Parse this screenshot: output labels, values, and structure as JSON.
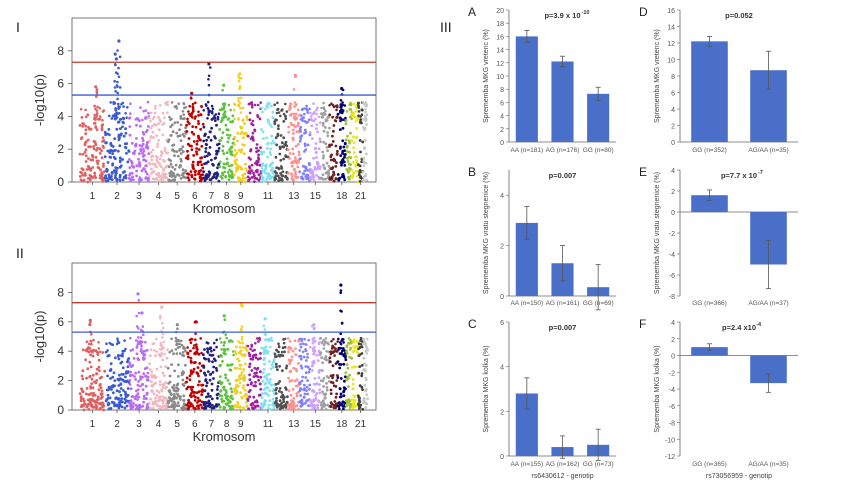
{
  "panel_labels": {
    "I": "I",
    "II": "II",
    "III": "III"
  },
  "colors": {
    "threshold_genome": "#c0392b",
    "threshold_suggestive": "#3b5bdb",
    "bar": "#4a6fc8",
    "chromosomes": [
      "#e06060",
      "#3c5bd0",
      "#b96cf0",
      "#f0b8c0",
      "#8a8a8a",
      "#c00000",
      "#202080",
      "#60c040",
      "#f0d020",
      "#a020a0",
      "#80e0f0",
      "#505050",
      "#ff9090",
      "#8080ff",
      "#d0a0ff",
      "#a0a0a0",
      "#702020",
      "#000070",
      "#a0c030",
      "#e8e820",
      "#404040",
      "#c8c8c8"
    ]
  },
  "chart_data": [
    {
      "id": "I",
      "type": "scatter",
      "subtype": "manhattan",
      "ylabel": "-log10(p)",
      "xlabel": "Kromosom",
      "ylim": [
        0,
        10
      ],
      "yticks": [
        "0",
        "2",
        "4",
        "6",
        "8"
      ],
      "xtick_labels": [
        "1",
        "2",
        "3",
        "4",
        "5",
        "6",
        "7",
        "8",
        "9",
        "11",
        "13",
        "15",
        "18",
        "21"
      ],
      "thresholds": [
        7.3,
        5.3
      ],
      "peaks": [
        {
          "chrom": 1,
          "value": 5.8
        },
        {
          "chrom": 2,
          "value": 8.6
        },
        {
          "chrom": 2,
          "value": 7.8
        },
        {
          "chrom": 2,
          "value": 7.5
        },
        {
          "chrom": 6,
          "value": 5.4
        },
        {
          "chrom": 7,
          "value": 7.2
        },
        {
          "chrom": 8,
          "value": 5.9
        },
        {
          "chrom": 9,
          "value": 6.6
        },
        {
          "chrom": 13,
          "value": 6.5
        },
        {
          "chrom": 18,
          "value": 5.7
        }
      ]
    },
    {
      "id": "II",
      "type": "scatter",
      "subtype": "manhattan",
      "ylabel": "-log10(p)",
      "xlabel": "Kromosom",
      "ylim": [
        0,
        10
      ],
      "yticks": [
        "0",
        "2",
        "4",
        "6",
        "8"
      ],
      "xtick_labels": [
        "1",
        "2",
        "3",
        "4",
        "5",
        "6",
        "7",
        "8",
        "9",
        "11",
        "13",
        "15",
        "18",
        "21"
      ],
      "thresholds": [
        7.3,
        5.3
      ],
      "peaks": [
        {
          "chrom": 1,
          "value": 6.1
        },
        {
          "chrom": 3,
          "value": 7.9
        },
        {
          "chrom": 3,
          "value": 6.6
        },
        {
          "chrom": 4,
          "value": 7.0
        },
        {
          "chrom": 5,
          "value": 5.8
        },
        {
          "chrom": 6,
          "value": 6.0
        },
        {
          "chrom": 8,
          "value": 6.4
        },
        {
          "chrom": 9,
          "value": 7.2
        },
        {
          "chrom": 11,
          "value": 6.2
        },
        {
          "chrom": 18,
          "value": 8.5
        },
        {
          "chrom": 15,
          "value": 5.8
        }
      ]
    },
    {
      "id": "A",
      "type": "bar",
      "ylabel": "Sprememba MKG vretenc (%)",
      "pvalue": "p=3.9 x 10",
      "pvalue_exp": "-10",
      "ylim": [
        0,
        20
      ],
      "yticks": [
        0,
        2,
        4,
        6,
        8,
        10,
        12,
        14,
        16,
        18,
        20
      ],
      "categories": [
        "AA (n=181)",
        "AG (n=176)",
        "GG (n=80)"
      ],
      "values": [
        16.0,
        12.2,
        7.3
      ],
      "errors": [
        0.9,
        0.8,
        1.0
      ]
    },
    {
      "id": "B",
      "type": "bar",
      "ylabel": "Sprememba MKG vratu stegnenice (%)",
      "pvalue": "p=0.007",
      "ylim": [
        0,
        5
      ],
      "yticks": [
        0,
        2,
        4
      ],
      "categories": [
        "AA (n=150)",
        "AG (n=161)",
        "GG (n=69)"
      ],
      "values": [
        2.9,
        1.3,
        0.35
      ],
      "errors": [
        0.65,
        0.7,
        0.9
      ]
    },
    {
      "id": "C",
      "type": "bar",
      "ylabel": "Sprememba MKG kolka (%)",
      "pvalue": "p=0.007",
      "ylim": [
        0,
        6
      ],
      "yticks": [
        0,
        2,
        4,
        6
      ],
      "categories": [
        "AA (n=155)",
        "AG (n=162)",
        "GG (n=73)"
      ],
      "values": [
        2.8,
        0.4,
        0.5
      ],
      "errors": [
        0.7,
        0.5,
        0.7
      ],
      "xlabel": "rs6430612 - genotip"
    },
    {
      "id": "D",
      "type": "bar",
      "ylabel": "Sprememba MKG vretenc (%)",
      "pvalue": "p=0.052",
      "ylim": [
        0,
        16
      ],
      "yticks": [
        0,
        2,
        4,
        6,
        8,
        10,
        12,
        14,
        16
      ],
      "categories": [
        "GG (n=352)",
        "AG/AA (n=35)"
      ],
      "values": [
        12.2,
        8.7
      ],
      "errors": [
        0.6,
        2.3
      ]
    },
    {
      "id": "E",
      "type": "bar",
      "ylabel": "Sprememba MKG vratu stegnenice (%)",
      "pvalue": "p=7.7 x 10",
      "pvalue_exp": "-7",
      "ylim": [
        -8,
        4
      ],
      "yticks": [
        4,
        2,
        0,
        -2,
        -4,
        -6,
        -8
      ],
      "categories": [
        "GG (n=366)",
        "AG/AA (n=37)"
      ],
      "values": [
        1.6,
        -5.0
      ],
      "errors": [
        0.5,
        2.3
      ]
    },
    {
      "id": "F",
      "type": "bar",
      "ylabel": "Sprememba MKG kolka (%)",
      "pvalue": "p=2.4 x10",
      "pvalue_exp": "-4",
      "ylim": [
        -12,
        4
      ],
      "yticks": [
        4,
        2,
        0,
        -2,
        -4,
        -6,
        -8,
        -10,
        -12
      ],
      "categories": [
        "GG (n=365)",
        "AG/AA (n=35)"
      ],
      "values": [
        1.0,
        -3.3
      ],
      "errors": [
        0.4,
        1.1
      ],
      "xlabel": "rs73056959 - genotip"
    }
  ]
}
